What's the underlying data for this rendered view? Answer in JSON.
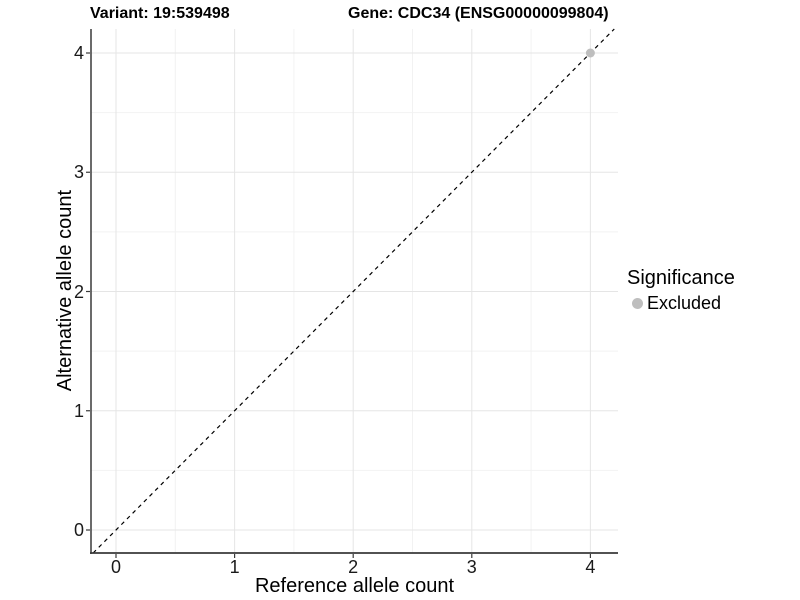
{
  "titles": {
    "variant": "Variant: 19:539498",
    "gene": "Gene: CDC34 (ENSG00000099804)"
  },
  "axes": {
    "x": {
      "label": "Reference allele count",
      "ticks": [
        "0",
        "1",
        "2",
        "3",
        "4"
      ]
    },
    "y": {
      "label": "Alternative allele count",
      "ticks": [
        "0",
        "1",
        "2",
        "3",
        "4"
      ]
    }
  },
  "legend": {
    "title": "Significance",
    "entries": [
      {
        "label": "Excluded",
        "color": "#bebebe",
        "marker": "circle-icon"
      }
    ],
    "position": "right"
  },
  "colors": {
    "background": "#ffffff",
    "grid_major": "#e5e5e5",
    "grid_minor": "#f2f2f2",
    "axis_line": "#3a3a3a",
    "identity_line": "#000000",
    "excluded_point": "#bebebe",
    "text": "#000000",
    "tick_text": "#1a1a1a"
  },
  "chart_data": {
    "type": "scatter",
    "title": "Variant: 19:539498 | Gene: CDC34 (ENSG00000099804)",
    "xlabel": "Reference allele count",
    "ylabel": "Alternative allele count",
    "x_ticks": [
      0,
      1,
      2,
      3,
      4
    ],
    "y_ticks": [
      0,
      1,
      2,
      3,
      4
    ],
    "xlim": [
      -0.21,
      4.24
    ],
    "ylim": [
      -0.19,
      4.2
    ],
    "grid": "major and minor gridlines, light gray on white",
    "legend_position": "right",
    "series": [
      {
        "name": "Excluded",
        "color": "#bebebe",
        "points": [
          {
            "x": 4,
            "y": 4
          }
        ]
      }
    ],
    "reference_line": {
      "kind": "identity",
      "slope": 1,
      "intercept": 0,
      "style": "dashed",
      "color": "#000000"
    }
  }
}
